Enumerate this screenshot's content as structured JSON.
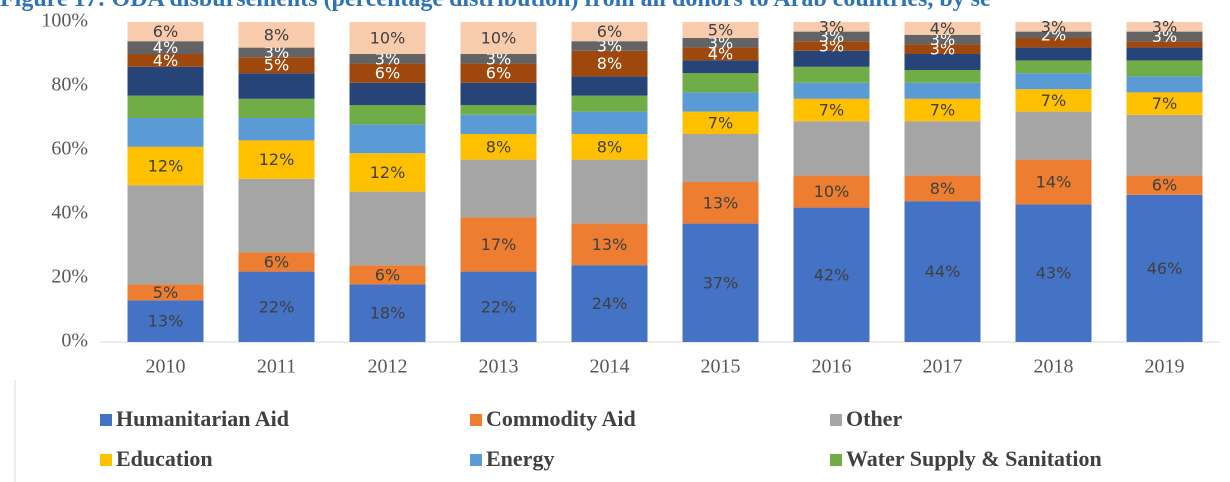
{
  "chart_data": {
    "type": "stacked_bar",
    "title": "Figure 17: ODA disbursements (percentage distribution) from all donors to Arab countries, by se",
    "categories": [
      "2010",
      "2011",
      "2012",
      "2013",
      "2014",
      "2015",
      "2016",
      "2017",
      "2018",
      "2019"
    ],
    "ylim": [
      0,
      100
    ],
    "yticks": [
      {
        "value": 0,
        "label": "0%"
      },
      {
        "value": 20,
        "label": "20%"
      },
      {
        "value": 40,
        "label": "40%"
      },
      {
        "value": 60,
        "label": "60%"
      },
      {
        "value": 80,
        "label": "80%"
      },
      {
        "value": 100,
        "label": "100%"
      }
    ],
    "grid": false,
    "series": [
      {
        "name": "Humanitarian Aid",
        "color": "#4472c4",
        "values": [
          13,
          22,
          18,
          22,
          24,
          37,
          42,
          44,
          43,
          46
        ],
        "value_labels": [
          "13%",
          "22%",
          "18%",
          "22%",
          "24%",
          "37%",
          "42%",
          "44%",
          "43%",
          "46%"
        ]
      },
      {
        "name": "Commodity Aid",
        "color": "#ed7d31",
        "values": [
          5,
          6,
          6,
          17,
          13,
          13,
          10,
          8,
          14,
          6
        ],
        "value_labels": [
          "5%",
          "6%",
          "6%",
          "17%",
          "13%",
          "13%",
          "10%",
          "8%",
          "14%",
          "6%"
        ]
      },
      {
        "name": "Other",
        "color": "#a5a5a5",
        "values": [
          31,
          23,
          23,
          18,
          20,
          15,
          17,
          17,
          15,
          19
        ]
      },
      {
        "name": "Education",
        "color": "#ffc000",
        "values": [
          12,
          12,
          12,
          8,
          8,
          7,
          7,
          7,
          7,
          7
        ],
        "value_labels": [
          "12%",
          "12%",
          "12%",
          "8%",
          "8%",
          "7%",
          "7%",
          "7%",
          "7%",
          "7%"
        ]
      },
      {
        "name": "Energy",
        "color": "#5b9bd5",
        "values": [
          9,
          7,
          9,
          6,
          7,
          6,
          5,
          5,
          5,
          5
        ]
      },
      {
        "name": "Water Supply & Sanitation",
        "color": "#70ad47",
        "values": [
          7,
          6,
          6,
          3,
          5,
          6,
          5,
          4,
          4,
          5
        ]
      },
      {
        "color": "#264478",
        "values": [
          9,
          8,
          7,
          7,
          6,
          4,
          5,
          5,
          4,
          4
        ]
      },
      {
        "color": "#9e480e",
        "values": [
          4,
          5,
          6,
          6,
          8,
          4,
          3,
          3,
          3,
          2
        ],
        "value_labels": [
          "4%",
          "5%",
          "6%",
          "6%",
          "8%",
          "4%",
          "3%",
          "3%",
          null,
          null
        ]
      },
      {
        "color": "#636363",
        "values": [
          4,
          3,
          3,
          3,
          3,
          3,
          3,
          3,
          2,
          3
        ],
        "value_labels": [
          "4%",
          "3%",
          "3%",
          "3%",
          "3%",
          "3%",
          "3%",
          "3%",
          "2%",
          "3%"
        ]
      },
      {
        "color": "#f8cbad",
        "values": [
          6,
          8,
          10,
          10,
          6,
          5,
          3,
          4,
          3,
          3
        ],
        "value_labels": [
          "6%",
          "8%",
          "10%",
          "10%",
          "6%",
          "5%",
          "3%",
          "4%",
          "3%",
          "3%"
        ]
      }
    ]
  }
}
